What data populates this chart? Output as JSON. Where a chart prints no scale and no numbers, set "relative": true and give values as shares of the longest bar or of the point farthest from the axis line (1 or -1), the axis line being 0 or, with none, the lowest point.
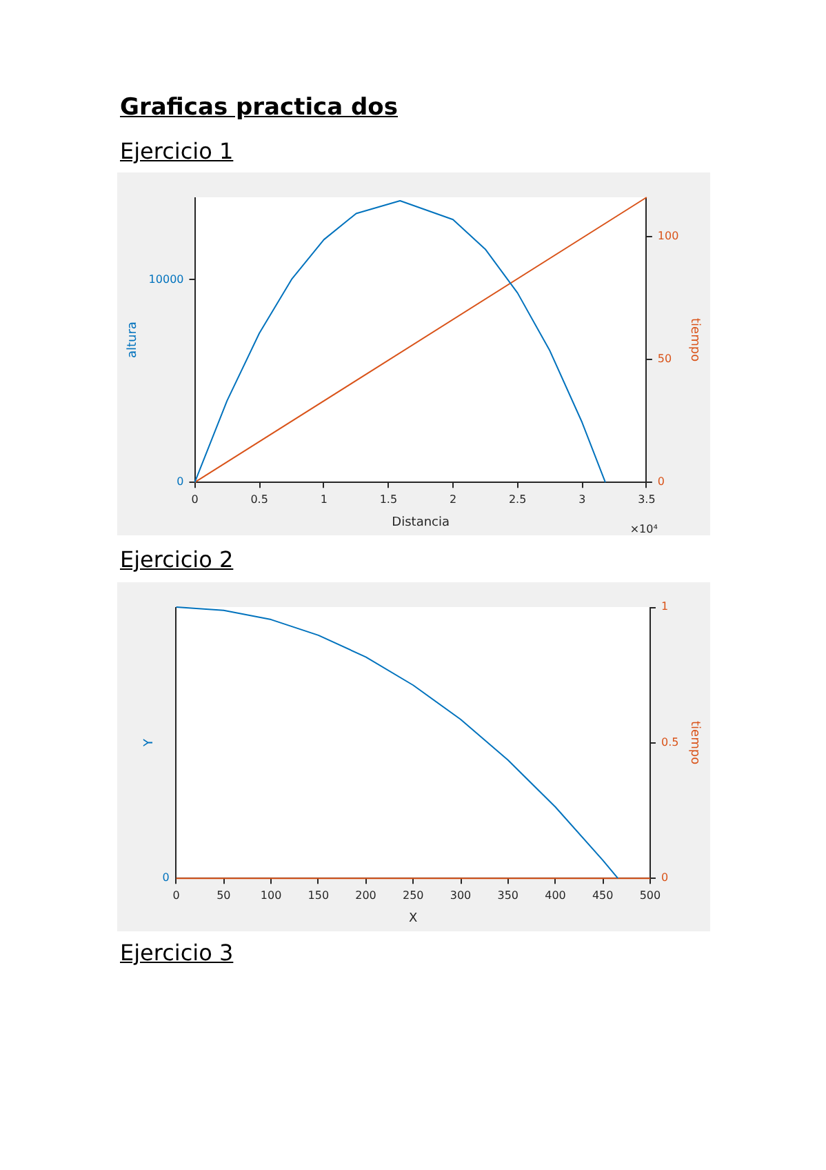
{
  "chart_data": [
    {
      "type": "line",
      "title": "Graficas practica dos",
      "subtitle": "Ejercicio 1",
      "xlabel": "Distancia",
      "ylabel": "altura",
      "y2label": "tiempo",
      "xlim": [
        0,
        3.5
      ],
      "xticks": [
        0,
        0.5,
        1,
        1.5,
        2,
        2.5,
        3,
        3.5
      ],
      "ylim": [
        0,
        14070
      ],
      "yticks": [
        0,
        10000
      ],
      "y2lim": [
        0,
        116
      ],
      "y2ticks": [
        0,
        50,
        100
      ],
      "annotations": [
        "×10⁴"
      ],
      "series": [
        {
          "color": "#0072bd",
          "x": [
            0,
            0.25,
            0.5,
            0.75,
            1,
            1.25,
            1.59,
            2,
            2.25,
            2.5,
            2.75,
            3,
            3.18
          ],
          "values": [
            0,
            4030,
            7360,
            10020,
            11980,
            13270,
            13900,
            12970,
            11510,
            9350,
            6500,
            2960,
            0
          ]
        },
        {
          "color": "#d95319",
          "axis": "y2",
          "x": [
            0,
            3.5
          ],
          "values": [
            0,
            116
          ]
        }
      ]
    },
    {
      "type": "line",
      "title": "Ejercicio 2",
      "xlabel": "X",
      "ylabel": "Y",
      "y2label": "tiempo",
      "xlim": [
        0,
        500
      ],
      "xticks": [
        0,
        50,
        100,
        150,
        200,
        250,
        300,
        350,
        400,
        450,
        500
      ],
      "relative": true,
      "y2lim": [
        0,
        1
      ],
      "y2ticks": [
        0,
        0.5,
        1
      ],
      "annotations": [
        "0",
        "Ejercicio 3"
      ],
      "series": [
        {
          "color": "#0072bd",
          "x": [
            0,
            50,
            100,
            150,
            200,
            250,
            300,
            350,
            400,
            450,
            466
          ],
          "values": [
            1,
            0.988,
            0.954,
            0.896,
            0.816,
            0.712,
            0.586,
            0.436,
            0.263,
            0.067,
            0
          ]
        },
        {
          "color": "#d95319",
          "axis": "y2",
          "x": [
            0,
            500
          ],
          "values": [
            0,
            0
          ]
        }
      ]
    }
  ]
}
